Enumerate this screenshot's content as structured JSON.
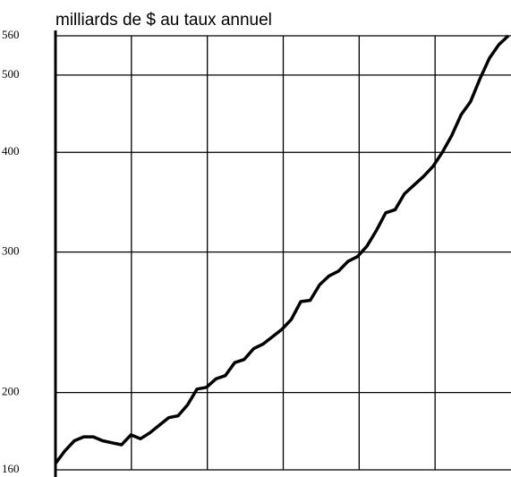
{
  "chart_data": {
    "type": "line",
    "title": "milliards de $ au taux annuel",
    "categories": [
      null,
      null,
      null,
      null,
      null,
      null,
      null,
      null,
      null,
      null,
      null,
      null,
      null,
      null,
      null,
      null,
      null,
      null,
      null,
      null,
      null,
      null,
      null,
      null,
      null,
      null,
      null,
      null,
      null,
      null,
      null,
      null,
      null,
      null,
      null,
      null,
      null,
      null,
      null,
      null,
      null,
      null,
      null,
      null,
      null,
      null,
      null,
      null,
      null
    ],
    "series": [
      {
        "name": null,
        "color": "#000000",
        "values": [
          163,
          169,
          174,
          176,
          176,
          174,
          173,
          172,
          177,
          175,
          178,
          182,
          186,
          187,
          193,
          202,
          203,
          208,
          210,
          218,
          220,
          227,
          230,
          235,
          240,
          247,
          260,
          261,
          273,
          280,
          284,
          292,
          296,
          305,
          319,
          336,
          339,
          355,
          364,
          373,
          384,
          400,
          420,
          446,
          463,
          495,
          525,
          546,
          560
        ]
      }
    ],
    "ylim": [
      160,
      560
    ],
    "yticks": [
      160,
      200,
      300,
      400,
      500,
      560
    ],
    "log_y": true,
    "grid": true
  }
}
